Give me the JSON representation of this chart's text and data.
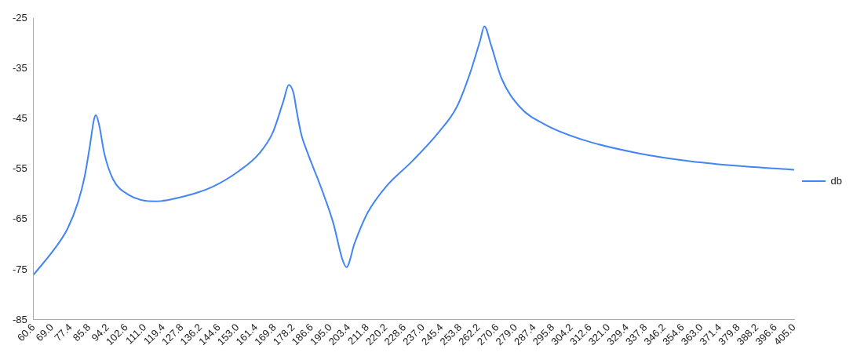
{
  "chart_data": {
    "type": "line",
    "x": [
      60.6,
      70.0,
      76.0,
      80.7,
      83.7,
      86.1,
      87.9,
      88.8,
      90.3,
      92.6,
      96.6,
      103.7,
      115.6,
      129.6,
      141.5,
      153.4,
      162.9,
      168.9,
      173.6,
      176.2,
      178.4,
      179.6,
      181.9,
      184.3,
      191.5,
      196.3,
      200.4,
      202.3,
      205.9,
      211.8,
      220.1,
      232.0,
      243.9,
      252.2,
      258.2,
      262.9,
      264.7,
      267.7,
      272.5,
      280.8,
      292.7,
      310.6,
      334.4,
      358.2,
      382.0,
      405.0
    ],
    "series": [
      {
        "name": "db",
        "color": "#4285f4",
        "values": [
          -76.0,
          -70.9,
          -66.8,
          -61.6,
          -56.5,
          -50.3,
          -45.2,
          -44.2,
          -46.2,
          -51.8,
          -57.0,
          -60.1,
          -61.4,
          -60.3,
          -58.5,
          -55.4,
          -51.8,
          -47.7,
          -41.6,
          -38.2,
          -40.0,
          -43.1,
          -48.2,
          -51.3,
          -59.5,
          -65.7,
          -72.9,
          -74.5,
          -69.8,
          -63.7,
          -58.5,
          -53.4,
          -47.7,
          -42.6,
          -35.9,
          -29.2,
          -26.5,
          -30.2,
          -36.9,
          -42.6,
          -46.2,
          -49.3,
          -51.8,
          -53.4,
          -54.4,
          -55.1
        ]
      }
    ],
    "xlim": [
      60.6,
      405.0
    ],
    "xticks": [
      60.6,
      {
        "value": 69,
        "label": "69.0"
      },
      77.4,
      85.8,
      94.2,
      102.6,
      {
        "value": 111,
        "label": "111.0"
      },
      119.4,
      127.8,
      136.2,
      144.6,
      {
        "value": 153,
        "label": "153.0"
      },
      161.4,
      169.8,
      178.2,
      186.6,
      {
        "value": 195,
        "label": "195.0"
      },
      203.4,
      211.8,
      220.2,
      228.6,
      {
        "value": 237,
        "label": "237.0"
      },
      245.4,
      253.8,
      262.2,
      270.6,
      {
        "value": 279,
        "label": "279.0"
      },
      287.4,
      295.8,
      304.2,
      312.6,
      {
        "value": 321,
        "label": "321.0"
      },
      329.4,
      337.8,
      346.2,
      354.6,
      {
        "value": 363,
        "label": "363.0"
      },
      371.4,
      379.8,
      388.2,
      396.6,
      {
        "value": 405,
        "label": "405.0"
      }
    ],
    "ylim": [
      -85,
      -25
    ],
    "yticks": [
      -85,
      -75,
      -65,
      -55,
      -45,
      -35,
      -25
    ],
    "grid": false,
    "legend": "right",
    "marker": "none",
    "line_style": "solid"
  }
}
